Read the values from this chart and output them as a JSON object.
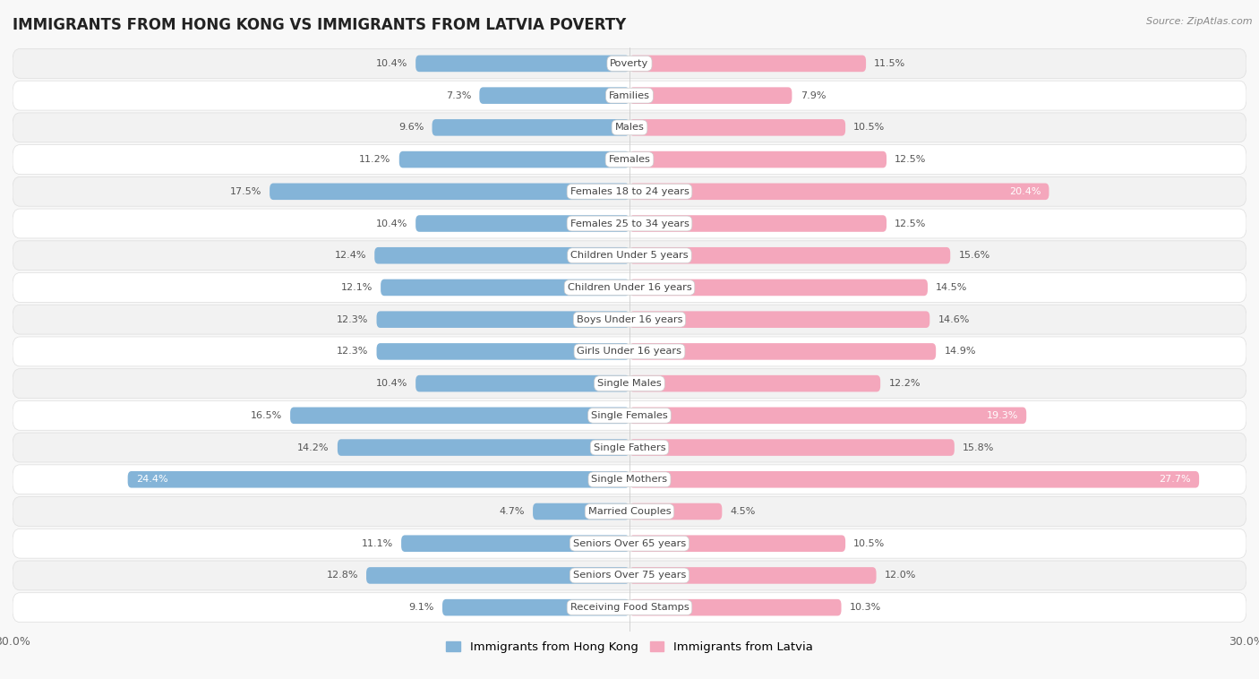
{
  "title": "IMMIGRANTS FROM HONG KONG VS IMMIGRANTS FROM LATVIA POVERTY",
  "source": "Source: ZipAtlas.com",
  "categories": [
    "Poverty",
    "Families",
    "Males",
    "Females",
    "Females 18 to 24 years",
    "Females 25 to 34 years",
    "Children Under 5 years",
    "Children Under 16 years",
    "Boys Under 16 years",
    "Girls Under 16 years",
    "Single Males",
    "Single Females",
    "Single Fathers",
    "Single Mothers",
    "Married Couples",
    "Seniors Over 65 years",
    "Seniors Over 75 years",
    "Receiving Food Stamps"
  ],
  "hong_kong": [
    10.4,
    7.3,
    9.6,
    11.2,
    17.5,
    10.4,
    12.4,
    12.1,
    12.3,
    12.3,
    10.4,
    16.5,
    14.2,
    24.4,
    4.7,
    11.1,
    12.8,
    9.1
  ],
  "latvia": [
    11.5,
    7.9,
    10.5,
    12.5,
    20.4,
    12.5,
    15.6,
    14.5,
    14.6,
    14.9,
    12.2,
    19.3,
    15.8,
    27.7,
    4.5,
    10.5,
    12.0,
    10.3
  ],
  "hong_kong_color": "#84b4d8",
  "latvia_color": "#f4a7bc",
  "row_bg_even": "#f2f2f2",
  "row_bg_odd": "#ffffff",
  "background_color": "#f8f8f8",
  "axis_max": 30.0,
  "legend_hk": "Immigrants from Hong Kong",
  "legend_lv": "Immigrants from Latvia",
  "label_color_outside": "#555555",
  "label_color_inside": "#ffffff",
  "cat_label_bg": "#ffffff",
  "cat_label_color": "#444444",
  "inside_threshold_hk": 20.0,
  "inside_threshold_lv": 18.0
}
